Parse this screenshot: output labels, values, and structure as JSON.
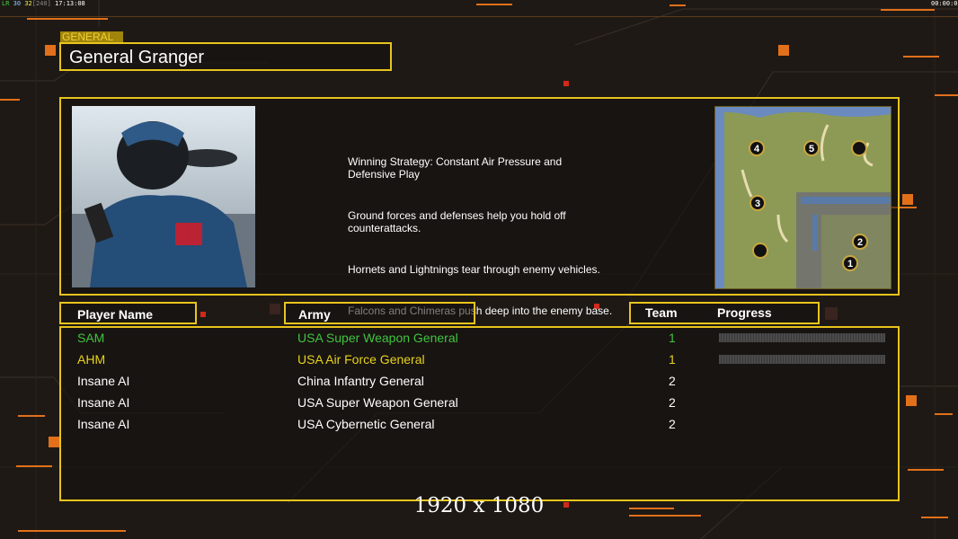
{
  "hud": {
    "fps_label": "LR",
    "fps_a": "30",
    "fps_b": "32",
    "fps_c": "[240]",
    "clock": "17:13:08",
    "timer": "00:00:00"
  },
  "general": {
    "section_label": "GENERAL",
    "name": "General Granger"
  },
  "briefing": [
    "Winning Strategy: Constant Air Pressure and\n Defensive Play",
    "Ground forces and defenses help you hold off\n counterattacks.",
    "Hornets and Lightnings tear through enemy vehicles.",
    "Falcons and Chimeras push deep into the enemy base."
  ],
  "map": {
    "start_positions": [
      "1",
      "2",
      "3",
      "4",
      "5",
      "",
      ""
    ]
  },
  "table": {
    "headers": {
      "player": "Player Name",
      "army": "Army",
      "team": "Team",
      "progress": "Progress"
    },
    "rows": [
      {
        "player": "SAM",
        "army": "USA Super Weapon General",
        "team": "1",
        "color": "#3fc43f",
        "progress": 0
      },
      {
        "player": "AHM",
        "army": "USA Air Force General",
        "team": "1",
        "color": "#e8d21c",
        "progress": 0
      },
      {
        "player": "Insane AI",
        "army": "China Infantry General",
        "team": "2",
        "color": "#ffffff"
      },
      {
        "player": "Insane AI",
        "army": "USA Super Weapon General",
        "team": "2",
        "color": "#ffffff"
      },
      {
        "player": "Insane AI",
        "army": "USA Cybernetic General",
        "team": "2",
        "color": "#ffffff"
      }
    ]
  },
  "resolution": "1920 x 1080",
  "colors": {
    "accent": "#e8c41c",
    "background": "#1e1915",
    "orange": "#f07a10"
  }
}
